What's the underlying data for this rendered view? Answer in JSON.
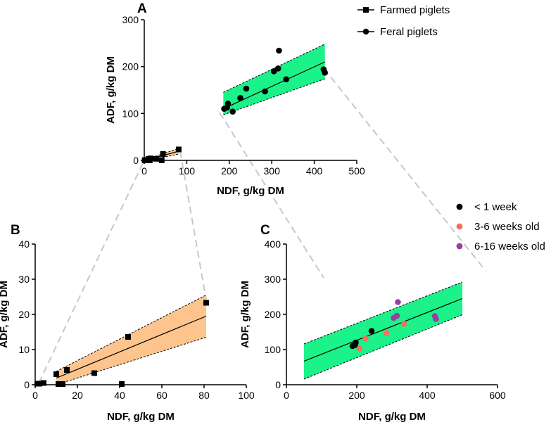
{
  "figure": {
    "zoom_connector_color": "#c8c8c8",
    "legend_series": {
      "farmed": "Farmed piglets",
      "feral": "Feral piglets"
    },
    "legend_age": {
      "lt1": "< 1 week",
      "w3_6": "3-6 weeks old",
      "w6_16": "6-16 weeks old"
    },
    "colors": {
      "green_band": "#1bf28a",
      "orange_band": "#fdc58d",
      "black": "#000000",
      "salmon": "#f0735f",
      "purple": "#9a3fa0"
    }
  },
  "chart_data": [
    {
      "panel": "A",
      "type": "scatter",
      "title": "A",
      "xlabel": "NDF, g/kg DM",
      "ylabel": "ADF, g/kg DM",
      "xlim": [
        0,
        500
      ],
      "ylim": [
        0,
        300
      ],
      "xticks": [
        0,
        100,
        200,
        300,
        400,
        500
      ],
      "yticks": [
        0,
        100,
        200,
        300
      ],
      "series": [
        {
          "name": "Farmed piglets",
          "marker": "square",
          "points": [
            [
              1,
              0.3
            ],
            [
              2,
              0.3
            ],
            [
              4,
              0.5
            ],
            [
              10,
              3
            ],
            [
              11,
              0.2
            ],
            [
              12,
              0.2
            ],
            [
              13,
              0.2
            ],
            [
              15,
              4.2
            ],
            [
              28,
              3.3
            ],
            [
              41,
              0.2
            ],
            [
              44,
              13.6
            ],
            [
              81,
              23.3
            ]
          ],
          "fit": {
            "x": [
              10,
              81
            ],
            "y": [
              1.9,
              19.5
            ]
          },
          "band": {
            "x": [
              10,
              81
            ],
            "lower": [
              0.0,
              13.5
            ],
            "upper": [
              3.8,
              25.5
            ]
          }
        },
        {
          "name": "Feral piglets",
          "marker": "circle",
          "points": [
            [
              188,
              110
            ],
            [
              195,
              113
            ],
            [
              197,
              121
            ],
            [
              208,
              104
            ],
            [
              226,
              133
            ],
            [
              240,
              153
            ],
            [
              284,
              147
            ],
            [
              305,
              190
            ],
            [
              315,
              196
            ],
            [
              317,
              234
            ],
            [
              334,
              173
            ],
            [
              422,
              194
            ],
            [
              425,
              187
            ]
          ],
          "fit": {
            "x": [
              186,
              425
            ],
            "y": [
              110,
              210
            ]
          },
          "band": {
            "x": [
              186,
              425
            ],
            "lower": [
              97,
              174
            ],
            "upper": [
              145,
              248
            ]
          }
        }
      ]
    },
    {
      "panel": "B",
      "type": "scatter",
      "title": "B",
      "xlabel": "NDF, g/kg DM",
      "ylabel": "ADF, g/kg DM",
      "xlim": [
        0,
        100
      ],
      "ylim": [
        0,
        40
      ],
      "xticks": [
        0,
        20,
        40,
        60,
        80,
        100
      ],
      "yticks": [
        0,
        10,
        20,
        30,
        40
      ],
      "series": [
        {
          "name": "Farmed piglets",
          "marker": "square",
          "points": [
            [
              1,
              0.3
            ],
            [
              2,
              0.3
            ],
            [
              4,
              0.5
            ],
            [
              10,
              3
            ],
            [
              11,
              0.2
            ],
            [
              12,
              0.2
            ],
            [
              13,
              0.2
            ],
            [
              15,
              4.2
            ],
            [
              28,
              3.3
            ],
            [
              41,
              0.2
            ],
            [
              44,
              13.6
            ],
            [
              81,
              23.3
            ]
          ],
          "fit": {
            "x": [
              10,
              81
            ],
            "y": [
              1.9,
              19.5
            ]
          },
          "band": {
            "x": [
              10,
              81
            ],
            "lower": [
              0.0,
              13.5
            ],
            "upper": [
              3.8,
              25.5
            ]
          }
        }
      ]
    },
    {
      "panel": "C",
      "type": "scatter",
      "title": "C",
      "xlabel": "NDF, g/kg DM",
      "ylabel": "ADF, g/kg DM",
      "xlim": [
        0,
        600
      ],
      "ylim": [
        0,
        400
      ],
      "xticks": [
        0,
        200,
        400,
        600
      ],
      "yticks": [
        0,
        100,
        200,
        300,
        400
      ],
      "series": [
        {
          "name": "< 1 week",
          "marker": "circle",
          "color": "#000000",
          "points": [
            [
              188,
              110
            ],
            [
              195,
              113
            ],
            [
              197,
              120
            ],
            [
              242,
              153
            ]
          ]
        },
        {
          "name": "3-6 weeks old",
          "marker": "circle",
          "color": "#f0735f",
          "points": [
            [
              208,
              103
            ],
            [
              225,
              132
            ],
            [
              284,
              147
            ],
            [
              334,
              173
            ]
          ]
        },
        {
          "name": "6-16 weeks old",
          "marker": "circle",
          "color": "#9a3fa0",
          "points": [
            [
              305,
              190
            ],
            [
              314,
              196
            ],
            [
              317,
              235
            ],
            [
              422,
              195
            ],
            [
              425,
              187
            ]
          ]
        }
      ],
      "fit": {
        "x": [
          50,
          500
        ],
        "y": [
          67,
          245
        ]
      },
      "band": {
        "x": [
          50,
          500
        ],
        "lower": [
          16,
          199
        ],
        "upper": [
          116,
          292
        ]
      }
    }
  ]
}
